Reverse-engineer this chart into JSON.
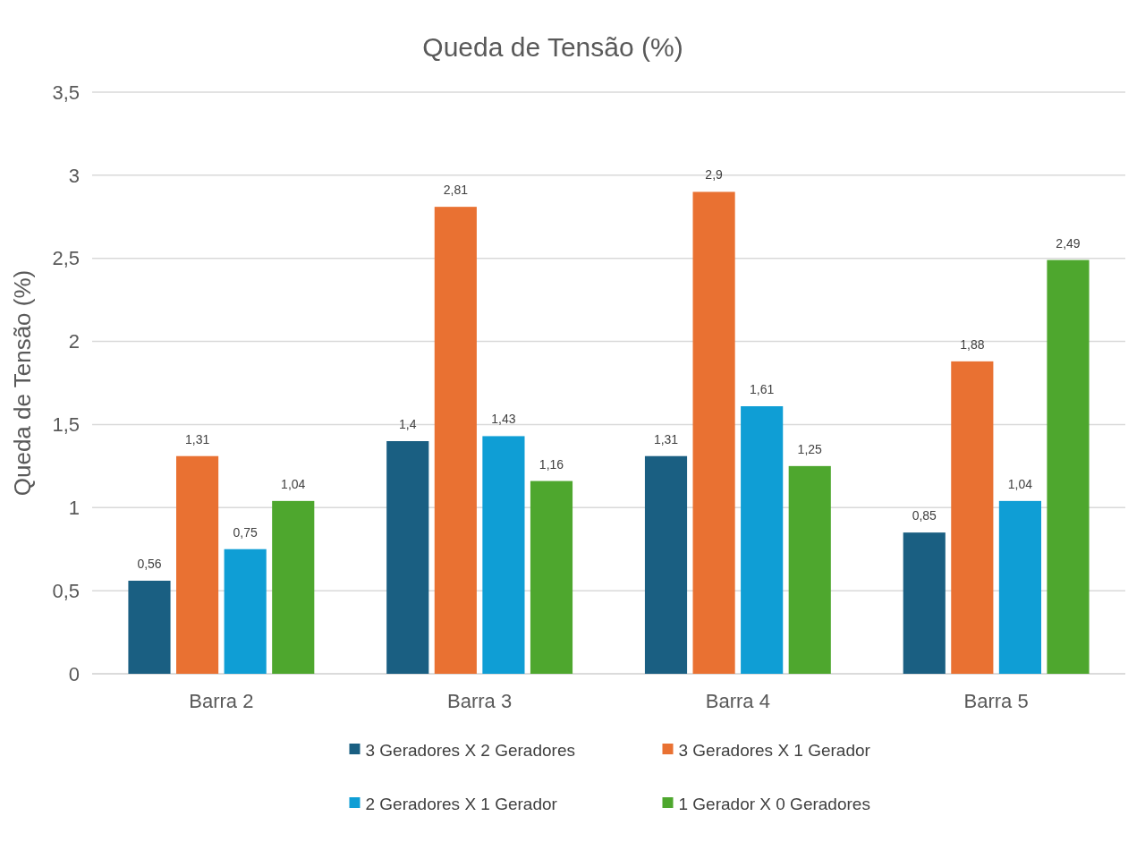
{
  "chart_data": {
    "type": "bar",
    "title": "Queda de Tensão (%)",
    "ylabel": "Queda de Tensão (%)",
    "categories": [
      "Barra 2",
      "Barra 3",
      "Barra 4",
      "Barra 5"
    ],
    "series": [
      {
        "name": "3 Geradores X 2 Geradores",
        "color": "#1a5f82",
        "values": [
          0.56,
          1.4,
          1.31,
          0.85
        ],
        "value_labels": [
          "0,56",
          "1,4",
          "1,31",
          "0,85"
        ]
      },
      {
        "name": "3 Geradores X 1 Gerador",
        "color": "#e97132",
        "values": [
          1.31,
          2.81,
          2.9,
          1.88
        ],
        "value_labels": [
          "1,31",
          "2,81",
          "2,9",
          "1,88"
        ]
      },
      {
        "name": "2 Geradores X 1 Gerador",
        "color": "#0f9ed5",
        "values": [
          0.75,
          1.43,
          1.61,
          1.04
        ],
        "value_labels": [
          "0,75",
          "1,43",
          "1,61",
          "1,04"
        ]
      },
      {
        "name": "1 Gerador X 0 Geradores",
        "color": "#4ea72e",
        "values": [
          1.04,
          1.16,
          1.25,
          2.49
        ],
        "value_labels": [
          "1,04",
          "1,16",
          "1,25",
          "2,49"
        ]
      }
    ],
    "ylim": [
      0,
      3.5
    ],
    "yticks": [
      0,
      {
        "value": 0.5,
        "label": "0,5"
      },
      1,
      {
        "value": 1.5,
        "label": "1,5"
      },
      2,
      {
        "value": 2.5,
        "label": "2,5"
      },
      3,
      {
        "value": 3.5,
        "label": "3,5"
      }
    ],
    "grid": "y",
    "legend": "bottom"
  }
}
